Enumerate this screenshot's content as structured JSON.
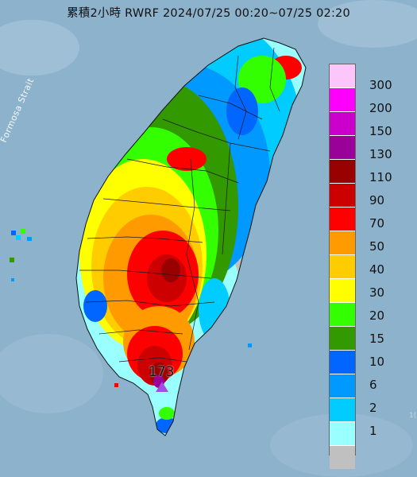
{
  "title": "累積2小時 RWRF 2024/07/25 00:20~07/25 02:20",
  "strait_label": "Formosa Strait",
  "peak_value": "173",
  "legend": {
    "items": [
      {
        "label": "300",
        "color": "#fdc6fa"
      },
      {
        "label": "200",
        "color": "#fd00fc"
      },
      {
        "label": "150",
        "color": "#cc00cc"
      },
      {
        "label": "130",
        "color": "#9a0199"
      },
      {
        "label": "110",
        "color": "#990000"
      },
      {
        "label": "90",
        "color": "#cc0000"
      },
      {
        "label": "70",
        "color": "#ff0000"
      },
      {
        "label": "50",
        "color": "#ff9a00"
      },
      {
        "label": "40",
        "color": "#ffcc00"
      },
      {
        "label": "30",
        "color": "#ffff00"
      },
      {
        "label": "20",
        "color": "#33ff00"
      },
      {
        "label": "15",
        "color": "#339900"
      },
      {
        "label": "10",
        "color": "#0066ff"
      },
      {
        "label": "6",
        "color": "#0099ff"
      },
      {
        "label": "2",
        "color": "#00ccff"
      },
      {
        "label": "1",
        "color": "#99ffff"
      },
      {
        "label": "",
        "color": "#c0c0c0"
      }
    ]
  },
  "corner_text": "1("
}
